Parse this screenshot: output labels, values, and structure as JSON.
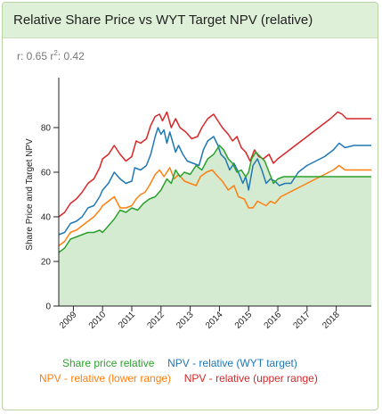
{
  "header": {
    "title": "Relative Share Price vs WYT Target NPV (relative)"
  },
  "stats": {
    "r_label": "r: 0.65",
    "r2_prefix": " r",
    "r2_sup": "2",
    "r2_value": ": 0.42"
  },
  "colors": {
    "share": "#2ca02c",
    "share_fill": "#d5ebd1",
    "wyt": "#1f77b4",
    "lower": "#ff7f0e",
    "upper": "#d62728",
    "axis": "#222222"
  },
  "chart_data": {
    "type": "line",
    "ylabel": "Share Price and Target NPV",
    "xlabel": "",
    "ylim": [
      0,
      100
    ],
    "xlim": [
      2008.5,
      2019.2
    ],
    "yticks": [
      0,
      20,
      40,
      60,
      80
    ],
    "xticks": [
      "2009",
      "2010",
      "2011",
      "2012",
      "2013",
      "2014",
      "2015",
      "2016",
      "2017",
      "2018"
    ],
    "series": [
      {
        "name": "Share price relative",
        "key": "share",
        "area": true,
        "points": [
          [
            2008.5,
            24
          ],
          [
            2008.7,
            26
          ],
          [
            2008.9,
            30
          ],
          [
            2009.1,
            31
          ],
          [
            2009.3,
            32
          ],
          [
            2009.5,
            33
          ],
          [
            2009.7,
            33
          ],
          [
            2009.9,
            34
          ],
          [
            2010.0,
            33
          ],
          [
            2010.2,
            36
          ],
          [
            2010.4,
            39
          ],
          [
            2010.6,
            43
          ],
          [
            2010.8,
            42
          ],
          [
            2011.0,
            44
          ],
          [
            2011.2,
            43
          ],
          [
            2011.4,
            46
          ],
          [
            2011.6,
            48
          ],
          [
            2011.8,
            49
          ],
          [
            2012.0,
            52
          ],
          [
            2012.2,
            57
          ],
          [
            2012.35,
            55
          ],
          [
            2012.5,
            61
          ],
          [
            2012.65,
            58
          ],
          [
            2012.8,
            60
          ],
          [
            2013.0,
            59
          ],
          [
            2013.2,
            63
          ],
          [
            2013.4,
            61
          ],
          [
            2013.6,
            66
          ],
          [
            2013.8,
            68
          ],
          [
            2014.0,
            72
          ],
          [
            2014.15,
            70
          ],
          [
            2014.3,
            66
          ],
          [
            2014.45,
            64
          ],
          [
            2014.6,
            60
          ],
          [
            2014.75,
            61
          ],
          [
            2014.9,
            58
          ],
          [
            2015.0,
            60
          ],
          [
            2015.1,
            66
          ],
          [
            2015.25,
            69
          ],
          [
            2015.4,
            67
          ],
          [
            2015.55,
            65
          ],
          [
            2015.7,
            60
          ],
          [
            2015.85,
            55
          ],
          [
            2016.0,
            57
          ],
          [
            2016.2,
            58
          ],
          [
            2016.5,
            58
          ],
          [
            2017.0,
            58
          ],
          [
            2017.5,
            58
          ],
          [
            2018.0,
            58
          ],
          [
            2018.5,
            58
          ],
          [
            2019.2,
            58
          ]
        ]
      },
      {
        "name": "NPV - relative (WYT target)",
        "key": "wyt",
        "area": false,
        "points": [
          [
            2008.5,
            32
          ],
          [
            2008.7,
            33
          ],
          [
            2008.9,
            37
          ],
          [
            2009.1,
            38
          ],
          [
            2009.3,
            40
          ],
          [
            2009.5,
            44
          ],
          [
            2009.7,
            45
          ],
          [
            2009.9,
            49
          ],
          [
            2010.0,
            52
          ],
          [
            2010.2,
            55
          ],
          [
            2010.4,
            60
          ],
          [
            2010.6,
            57
          ],
          [
            2010.8,
            55
          ],
          [
            2011.0,
            56
          ],
          [
            2011.1,
            62
          ],
          [
            2011.3,
            61
          ],
          [
            2011.5,
            63
          ],
          [
            2011.65,
            68
          ],
          [
            2011.8,
            76
          ],
          [
            2011.9,
            80
          ],
          [
            2012.0,
            77
          ],
          [
            2012.1,
            79
          ],
          [
            2012.2,
            73
          ],
          [
            2012.3,
            78
          ],
          [
            2012.5,
            69
          ],
          [
            2012.6,
            72
          ],
          [
            2012.75,
            68
          ],
          [
            2012.9,
            65
          ],
          [
            2013.1,
            64
          ],
          [
            2013.3,
            63
          ],
          [
            2013.45,
            70
          ],
          [
            2013.6,
            74
          ],
          [
            2013.8,
            76
          ],
          [
            2013.95,
            72
          ],
          [
            2014.05,
            68
          ],
          [
            2014.2,
            66
          ],
          [
            2014.35,
            61
          ],
          [
            2014.5,
            64
          ],
          [
            2014.65,
            60
          ],
          [
            2014.8,
            55
          ],
          [
            2014.9,
            58
          ],
          [
            2015.0,
            52
          ],
          [
            2015.15,
            63
          ],
          [
            2015.3,
            66
          ],
          [
            2015.45,
            61
          ],
          [
            2015.6,
            55
          ],
          [
            2015.75,
            57
          ],
          [
            2015.9,
            56
          ],
          [
            2016.05,
            54
          ],
          [
            2016.25,
            55
          ],
          [
            2016.45,
            55
          ],
          [
            2016.7,
            60
          ],
          [
            2017.0,
            63
          ],
          [
            2017.3,
            65
          ],
          [
            2017.6,
            67
          ],
          [
            2017.9,
            70
          ],
          [
            2018.1,
            73
          ],
          [
            2018.3,
            71
          ],
          [
            2018.6,
            72
          ],
          [
            2019.2,
            72
          ]
        ]
      },
      {
        "name": "NPV - relative (lower range)",
        "key": "lower",
        "area": false,
        "points": [
          [
            2008.5,
            27
          ],
          [
            2008.7,
            29
          ],
          [
            2008.9,
            33
          ],
          [
            2009.1,
            34
          ],
          [
            2009.3,
            36
          ],
          [
            2009.5,
            38
          ],
          [
            2009.7,
            40
          ],
          [
            2009.9,
            43
          ],
          [
            2010.0,
            45
          ],
          [
            2010.2,
            47
          ],
          [
            2010.4,
            49
          ],
          [
            2010.6,
            44
          ],
          [
            2010.8,
            44
          ],
          [
            2011.0,
            45
          ],
          [
            2011.15,
            48
          ],
          [
            2011.3,
            50
          ],
          [
            2011.45,
            51
          ],
          [
            2011.6,
            54
          ],
          [
            2011.8,
            59
          ],
          [
            2011.95,
            61
          ],
          [
            2012.1,
            58
          ],
          [
            2012.3,
            62
          ],
          [
            2012.45,
            57
          ],
          [
            2012.6,
            59
          ],
          [
            2012.8,
            56
          ],
          [
            2013.0,
            55
          ],
          [
            2013.2,
            54
          ],
          [
            2013.35,
            58
          ],
          [
            2013.55,
            60
          ],
          [
            2013.75,
            61
          ],
          [
            2013.95,
            58
          ],
          [
            2014.1,
            56
          ],
          [
            2014.3,
            52
          ],
          [
            2014.5,
            54
          ],
          [
            2014.65,
            49
          ],
          [
            2014.85,
            48
          ],
          [
            2015.0,
            44
          ],
          [
            2015.15,
            44
          ],
          [
            2015.3,
            47
          ],
          [
            2015.45,
            46
          ],
          [
            2015.6,
            45
          ],
          [
            2015.75,
            47
          ],
          [
            2015.9,
            46
          ],
          [
            2016.1,
            49
          ],
          [
            2016.4,
            51
          ],
          [
            2016.7,
            53
          ],
          [
            2017.0,
            55
          ],
          [
            2017.3,
            57
          ],
          [
            2017.6,
            59
          ],
          [
            2017.9,
            61
          ],
          [
            2018.1,
            63
          ],
          [
            2018.3,
            61
          ],
          [
            2018.6,
            61
          ],
          [
            2019.2,
            61
          ]
        ]
      },
      {
        "name": "NPV - relative (upper range)",
        "key": "upper",
        "area": false,
        "points": [
          [
            2008.5,
            40
          ],
          [
            2008.7,
            42
          ],
          [
            2008.9,
            46
          ],
          [
            2009.1,
            48
          ],
          [
            2009.3,
            51
          ],
          [
            2009.5,
            55
          ],
          [
            2009.7,
            57
          ],
          [
            2009.9,
            62
          ],
          [
            2010.0,
            66
          ],
          [
            2010.2,
            68
          ],
          [
            2010.4,
            72
          ],
          [
            2010.6,
            68
          ],
          [
            2010.8,
            65
          ],
          [
            2011.0,
            67
          ],
          [
            2011.15,
            74
          ],
          [
            2011.3,
            73
          ],
          [
            2011.5,
            75
          ],
          [
            2011.65,
            81
          ],
          [
            2011.8,
            85
          ],
          [
            2011.95,
            86
          ],
          [
            2012.05,
            83
          ],
          [
            2012.2,
            87
          ],
          [
            2012.35,
            80
          ],
          [
            2012.5,
            84
          ],
          [
            2012.65,
            80
          ],
          [
            2012.85,
            78
          ],
          [
            2013.05,
            75
          ],
          [
            2013.25,
            76
          ],
          [
            2013.4,
            80
          ],
          [
            2013.6,
            84
          ],
          [
            2013.8,
            86
          ],
          [
            2013.95,
            83
          ],
          [
            2014.1,
            80
          ],
          [
            2014.3,
            77
          ],
          [
            2014.45,
            74
          ],
          [
            2014.6,
            76
          ],
          [
            2014.75,
            71
          ],
          [
            2014.9,
            69
          ],
          [
            2015.05,
            65
          ],
          [
            2015.2,
            70
          ],
          [
            2015.35,
            67
          ],
          [
            2015.5,
            66
          ],
          [
            2015.7,
            68
          ],
          [
            2015.85,
            64
          ],
          [
            2016.0,
            66
          ],
          [
            2016.3,
            69
          ],
          [
            2016.6,
            72
          ],
          [
            2016.9,
            75
          ],
          [
            2017.2,
            78
          ],
          [
            2017.5,
            81
          ],
          [
            2017.8,
            84
          ],
          [
            2018.05,
            87
          ],
          [
            2018.2,
            86
          ],
          [
            2018.35,
            84
          ],
          [
            2018.7,
            84
          ],
          [
            2019.2,
            84
          ]
        ]
      }
    ]
  },
  "legend": {
    "row1": [
      "Share price relative",
      "NPV - relative (WYT target)"
    ],
    "row2": [
      "NPV - relative (lower range)",
      "NPV - relative (upper range)"
    ]
  }
}
